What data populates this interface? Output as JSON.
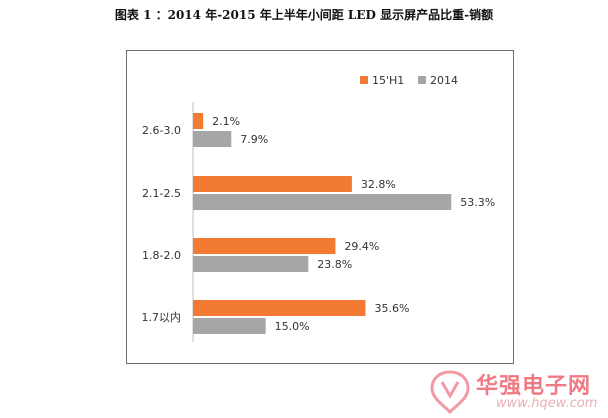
{
  "page": {
    "title": "图表 1 ：2014 年-2015 年上半年小间距 LED 显示屏产品比重-销额"
  },
  "watermark": {
    "brand": "华强电子网",
    "url": "www.hqew.com"
  },
  "chart_data": {
    "type": "bar",
    "orientation": "horizontal",
    "title": "",
    "xlabel": "",
    "ylabel": "",
    "categories": [
      "2.6-3.0",
      "2.1-2.5",
      "1.8-2.0",
      "1.7以内"
    ],
    "series": [
      {
        "name": "15'H1",
        "values": [
          2.1,
          32.8,
          29.4,
          35.6
        ],
        "labels": [
          "2.1%",
          "32.8%",
          "29.4%",
          "35.6%"
        ],
        "color": "#f37a32"
      },
      {
        "name": "2014",
        "values": [
          7.9,
          53.3,
          23.8,
          15.0
        ],
        "labels": [
          "7.9%",
          "53.3%",
          "23.8%",
          "15.0%"
        ],
        "color": "#a6a6a6"
      }
    ],
    "xlim": [
      0,
      60
    ],
    "grid": false,
    "legend_position": "top-right"
  }
}
